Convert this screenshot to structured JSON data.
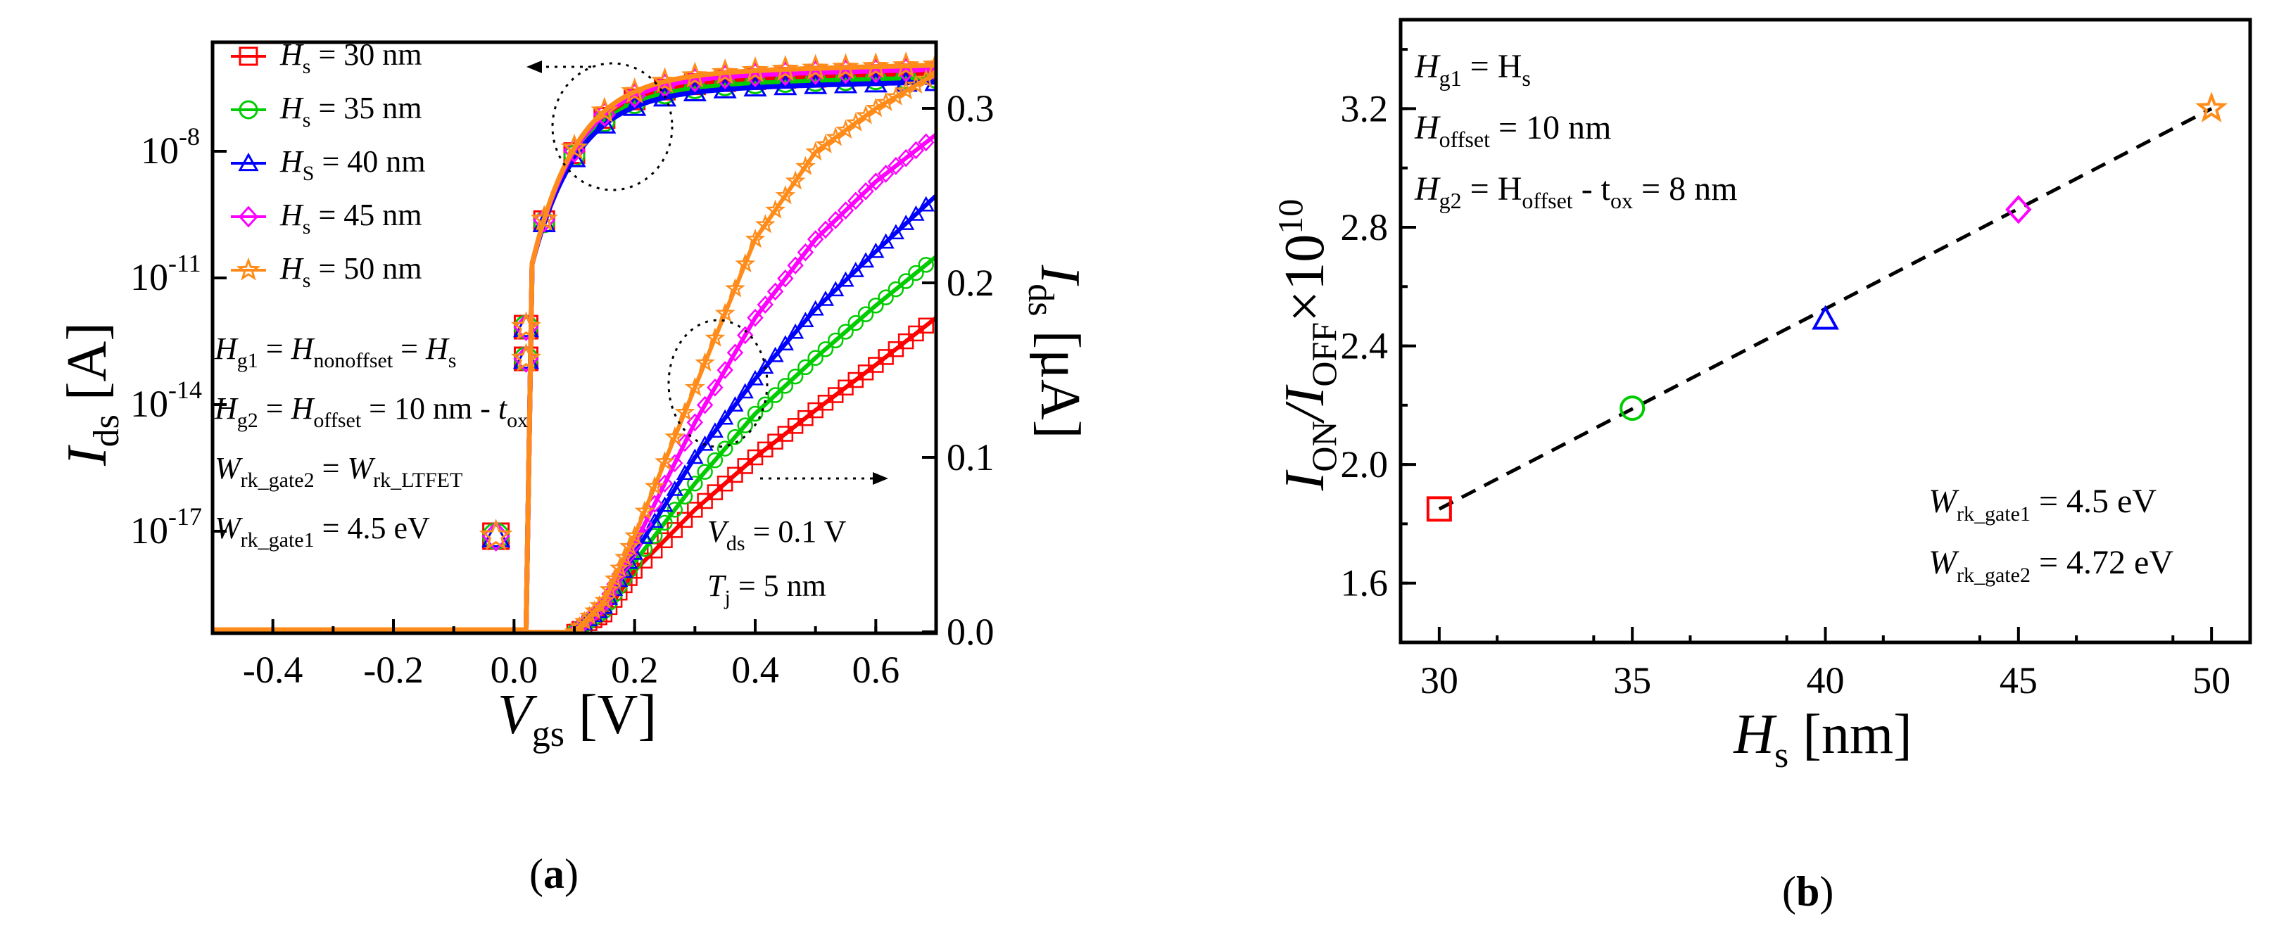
{
  "chart_data": [
    {
      "id": "a",
      "type": "line",
      "caption": "a",
      "left_axis": {
        "label": "I",
        "label_sub": "ds",
        "unit": "[A]",
        "scale": "log",
        "tick_exponents": [
          "-8",
          "-11",
          "-14",
          "-17"
        ],
        "tick_base": "10"
      },
      "right_axis": {
        "label": "I",
        "label_sub": "ds",
        "unit": "[μA]",
        "ylim": [
          0,
          0.34
        ],
        "ticks": [
          "0.0",
          "0.1",
          "0.2",
          "0.3"
        ]
      },
      "x_axis": {
        "label": "V",
        "label_sub": "gs",
        "unit": "[V]",
        "xlim": [
          -0.5,
          0.7
        ],
        "ticks": [
          "-0.4",
          "-0.2",
          "0.0",
          "0.2",
          "0.4",
          "0.6"
        ]
      },
      "series": [
        {
          "name": "30 nm",
          "prefix": "H",
          "sub": "s",
          "text": " = 30 nm",
          "color": "#ff0000",
          "marker": "square",
          "linear_x": [
            0.1,
            0.15,
            0.2,
            0.3,
            0.4,
            0.5,
            0.6,
            0.7
          ],
          "linear_y": [
            0.0,
            0.01,
            0.035,
            0.07,
            0.1,
            0.127,
            0.153,
            0.18
          ]
        },
        {
          "name": "35 nm",
          "prefix": "H",
          "sub": "s",
          "text": " = 35 nm",
          "color": "#00cc00",
          "marker": "circle",
          "linear_x": [
            0.1,
            0.15,
            0.2,
            0.3,
            0.4,
            0.5,
            0.6,
            0.7
          ],
          "linear_y": [
            0.0,
            0.012,
            0.04,
            0.085,
            0.125,
            0.157,
            0.187,
            0.215
          ]
        },
        {
          "name": "40 nm",
          "prefix": "H",
          "sub": "S",
          "text": " = 40 nm",
          "color": "#0000ff",
          "marker": "triangle",
          "linear_x": [
            0.1,
            0.15,
            0.2,
            0.3,
            0.4,
            0.5,
            0.6,
            0.7
          ],
          "linear_y": [
            0.0,
            0.014,
            0.045,
            0.1,
            0.145,
            0.185,
            0.218,
            0.25
          ]
        },
        {
          "name": "45 nm",
          "prefix": "H",
          "sub": "s",
          "text": " = 45 nm",
          "color": "#ff00ff",
          "marker": "diamond",
          "linear_x": [
            0.1,
            0.15,
            0.2,
            0.3,
            0.4,
            0.5,
            0.6,
            0.7
          ],
          "linear_y": [
            0.0,
            0.016,
            0.05,
            0.12,
            0.18,
            0.225,
            0.258,
            0.285
          ]
        },
        {
          "name": "50 nm",
          "prefix": "H",
          "sub": "s",
          "text": " = 50 nm",
          "color": "#ff8c1a",
          "marker": "star",
          "linear_x": [
            0.1,
            0.15,
            0.2,
            0.3,
            0.4,
            0.5,
            0.6,
            0.7
          ],
          "linear_y": [
            0.0,
            0.018,
            0.055,
            0.14,
            0.225,
            0.275,
            0.3,
            0.32
          ]
        }
      ],
      "annotations": {
        "cond1": "H_g1 = H_nonoffset = H_s",
        "cond2": "H_g2 = H_offset = 10 nm - t_ox",
        "cond3": "W_rk_gate2 = W_rk_LTFET",
        "cond4": "W_rk_gate1 = 4.5 eV",
        "vds": "V_ds = 0.1 V",
        "tj": "T_j = 5 nm",
        "vds_val": " = 0.1 V",
        "tj_val": " = 5 nm",
        "w1_val": " = 4.5 eV",
        "h_offset_val": " = 10 nm - ",
        "eq": " = ",
        "dash": " - ",
        "sub_g1": "g1",
        "sub_nonoffset": "nonoffset",
        "sub_s": "s",
        "sub_g2": "g2",
        "sub_offset": "offset",
        "sub_ox": "ox",
        "sub_rk_gate2": "rk_gate2",
        "sub_rk_ltfet": "rk_LTFET",
        "sub_rk_gate1": "rk_gate1",
        "sub_ds": "ds",
        "sub_j": "j"
      }
    },
    {
      "id": "b",
      "type": "scatter",
      "caption": "b",
      "x_axis": {
        "label": "H",
        "label_sub": "s",
        "unit": "[nm]",
        "xlim": [
          29,
          51
        ],
        "ticks": [
          "30",
          "35",
          "40",
          "45",
          "50"
        ]
      },
      "y_axis": {
        "label_main": "I",
        "label_sub1": "ON",
        "label_slash": "/I",
        "label_sub2": "OFF",
        "label_times": "×10",
        "label_exp": "10",
        "ylim": [
          1.4,
          3.5
        ],
        "ticks": [
          "1.6",
          "2.0",
          "2.4",
          "2.8",
          "3.2"
        ]
      },
      "points": [
        {
          "x": 30,
          "y": 1.85,
          "color": "#ff0000",
          "marker": "square"
        },
        {
          "x": 35,
          "y": 2.19,
          "color": "#00cc00",
          "marker": "circle"
        },
        {
          "x": 40,
          "y": 2.49,
          "color": "#0000ff",
          "marker": "triangle"
        },
        {
          "x": 45,
          "y": 2.86,
          "color": "#ff00ff",
          "marker": "diamond"
        },
        {
          "x": 50,
          "y": 3.2,
          "color": "#ff8c1a",
          "marker": "star"
        }
      ],
      "fit": {
        "x": [
          30,
          50
        ],
        "y": [
          1.85,
          3.2
        ],
        "style": "dashed"
      },
      "annotations": {
        "a1_main": "H",
        "a1_sub": "g1",
        "a1_eq": " = H",
        "a1_sub2": "s",
        "a2_main": "H",
        "a2_sub": "offset",
        "a2_eq": " = 10 nm",
        "a3_main": "H",
        "a3_sub": "g2",
        "a3_eq": " = H",
        "a3_sub2": "offset",
        "a3_mid": " - t",
        "a3_sub3": "ox",
        "a3_end": " = 8 nm",
        "w1_main": "W",
        "w1_sub": "rk_gate1",
        "w1_eq": " = 4.5 eV",
        "w2_main": "W",
        "w2_sub": "rk_gate2",
        "w2_eq": " = 4.72 eV"
      }
    }
  ]
}
